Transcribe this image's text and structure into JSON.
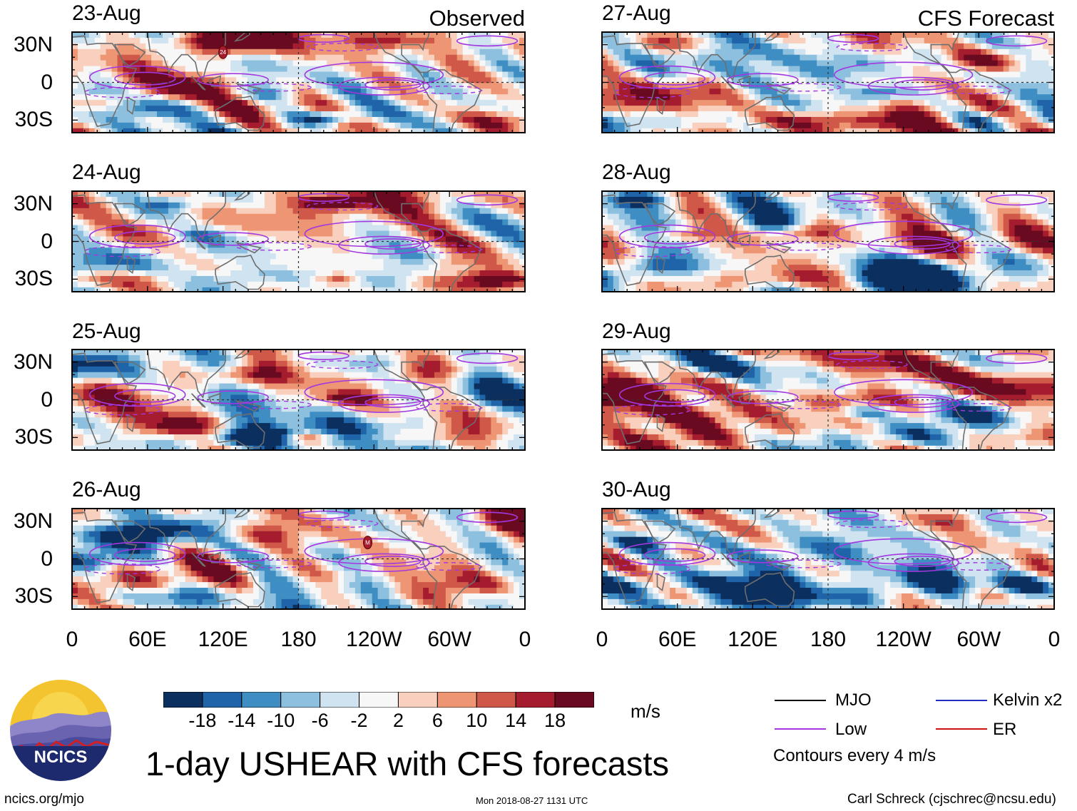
{
  "chart_data": {
    "type": "heatmap",
    "title": "1-day USHEAR with CFS forecasts",
    "columns": [
      {
        "name": "Observed",
        "dates": [
          "23-Aug",
          "24-Aug",
          "25-Aug",
          "26-Aug"
        ]
      },
      {
        "name": "CFS Forecast",
        "dates": [
          "27-Aug",
          "28-Aug",
          "29-Aug",
          "30-Aug"
        ]
      }
    ],
    "y_ticks": [
      "30N",
      "0",
      "30S"
    ],
    "y_tick_values": [
      30,
      0,
      -30
    ],
    "y_range": [
      -40,
      40
    ],
    "x_ticks": [
      "0",
      "60E",
      "120E",
      "180",
      "120W",
      "60W",
      "0"
    ],
    "x_tick_values": [
      0,
      60,
      120,
      180,
      240,
      300,
      360
    ],
    "x_range": [
      0,
      360
    ],
    "colorbar": {
      "unit": "m/s",
      "labels": [
        "-18",
        "-14",
        "-10",
        "-6",
        "-2",
        "2",
        "6",
        "10",
        "14",
        "18"
      ],
      "levels": [
        -18,
        -14,
        -10,
        -6,
        -2,
        2,
        6,
        10,
        14,
        18
      ],
      "colors": [
        "#0b2f5e",
        "#1f63a8",
        "#3f8ec3",
        "#8cc0de",
        "#cfe3f0",
        "#f7f7f7",
        "#f9cfbd",
        "#ee9674",
        "#d05848",
        "#a51c2e",
        "#6a0a21"
      ]
    },
    "contour_legend": [
      {
        "label": "MJO",
        "color": "#000000"
      },
      {
        "label": "Kelvin x2",
        "color": "#1f2fc0"
      },
      {
        "label": "Low",
        "color": "#a238e0"
      },
      {
        "label": "ER",
        "color": "#cc1111"
      }
    ],
    "contour_interval_text": "Contours every 4 m/s",
    "storm_markers": [
      {
        "date": "23-Aug",
        "label": "24",
        "lon": 120,
        "lat": 24
      },
      {
        "date": "26-Aug",
        "label": "M",
        "lon": 235,
        "lat": 13
      }
    ]
  },
  "logo_text": "NCICS",
  "footer": {
    "url": "ncics.org/mjo",
    "timestamp": "Mon 2018-08-27 1131 UTC",
    "credit": "Carl Schreck (cjschrec@ncsu.edu)"
  }
}
